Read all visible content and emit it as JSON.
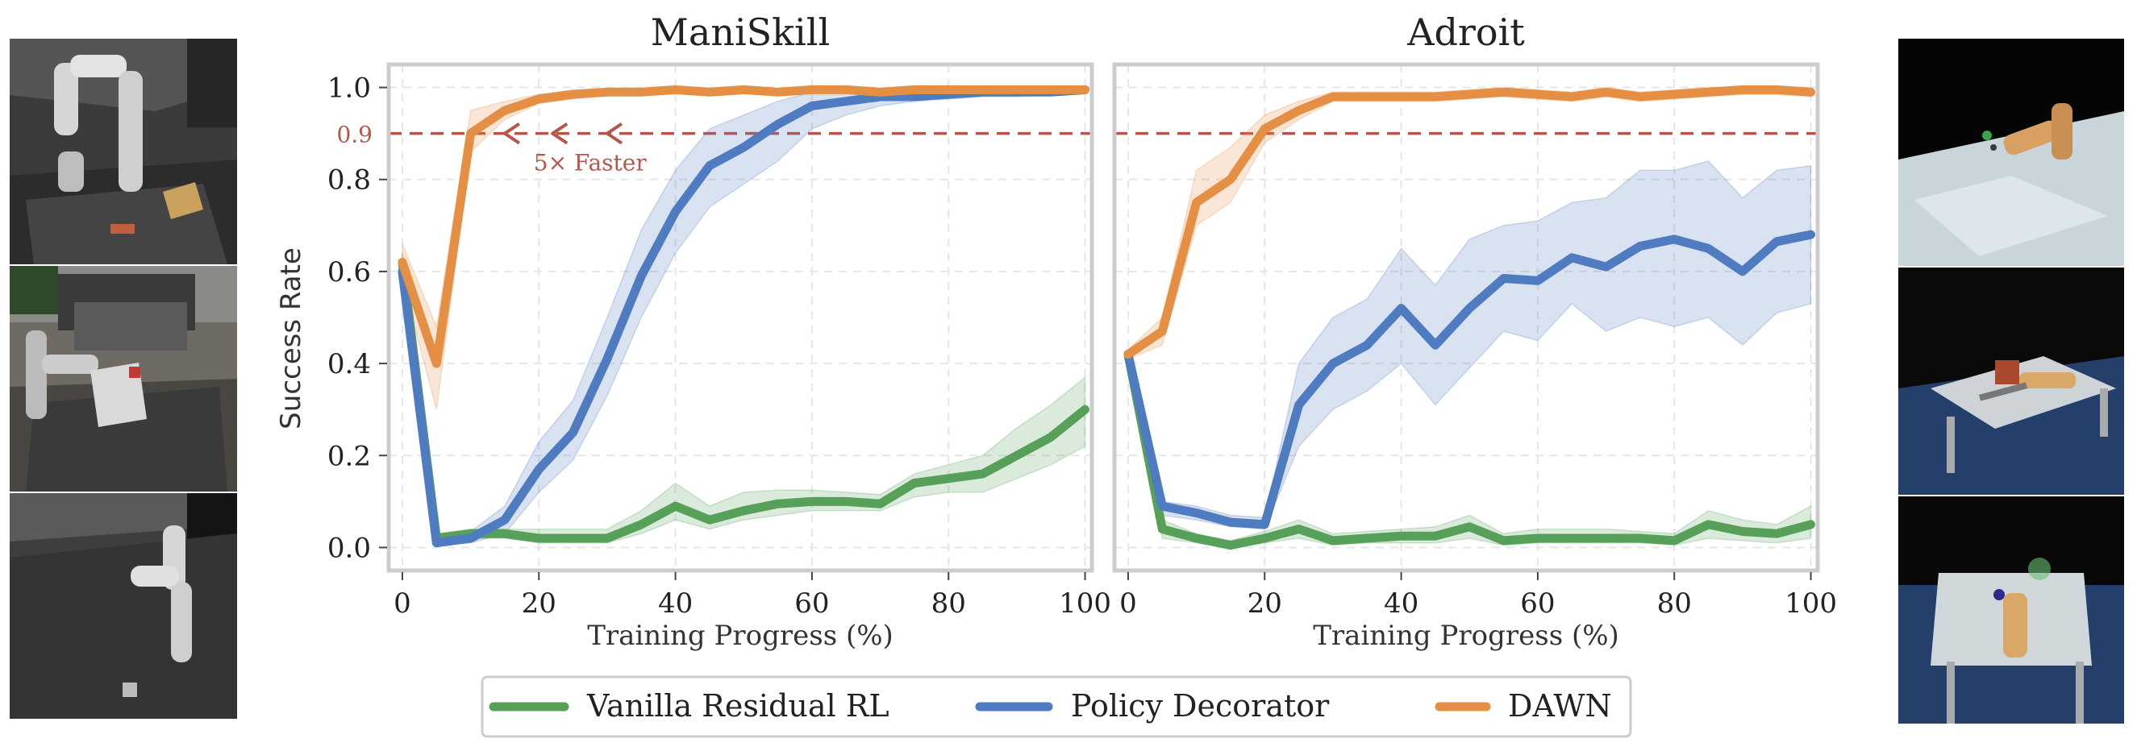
{
  "figure": {
    "y_axis_label": "Success Rate",
    "x_axis_label": "Training Progress (%)"
  },
  "annotation": {
    "threshold_label": "0.9",
    "speedup_label": "5× Faster"
  },
  "colors": {
    "vanilla": "#56a05a",
    "decorator": "#4f7cc1",
    "dawn": "#e58f45",
    "threshold": "#b5564b",
    "frame": "#cccccc",
    "grid": "#e6e6e6"
  },
  "legend": {
    "items": [
      {
        "label": "Vanilla Residual RL",
        "color": "#56a05a"
      },
      {
        "label": "Policy Decorator",
        "color": "#4f7cc1"
      },
      {
        "label": "DAWN",
        "color": "#e58f45"
      }
    ]
  },
  "thumbnails": {
    "left": [
      "robot-arm-cube-scene",
      "robot-arm-bedroom-chair-scene",
      "robot-arm-floor-scene"
    ],
    "right": [
      "dexterous-hand-marble-table-scene",
      "dexterous-hand-hammer-scene",
      "dexterous-hand-ball-scene"
    ]
  },
  "chart_data": [
    {
      "type": "line",
      "title": "ManiSkill",
      "xlabel": "Training Progress (%)",
      "ylabel": "Success Rate",
      "xlim": [
        -2,
        101
      ],
      "ylim": [
        -0.05,
        1.05
      ],
      "xticks": [
        "0",
        "20",
        "40",
        "60",
        "80",
        "100"
      ],
      "yticks": [
        "0.0",
        "0.2",
        "0.4",
        "0.6",
        "0.8",
        "1.0"
      ],
      "threshold": 0.9,
      "x": [
        0,
        5,
        10,
        15,
        20,
        25,
        30,
        35,
        40,
        45,
        50,
        55,
        60,
        65,
        70,
        75,
        80,
        85,
        90,
        95,
        100
      ],
      "series": [
        {
          "name": "Vanilla Residual RL",
          "key": "vanilla",
          "values": [
            0.62,
            0.02,
            0.03,
            0.03,
            0.02,
            0.02,
            0.02,
            0.05,
            0.09,
            0.06,
            0.08,
            0.095,
            0.1,
            0.1,
            0.095,
            0.14,
            0.15,
            0.16,
            0.2,
            0.24,
            0.3
          ],
          "lower": [
            0.6,
            0.01,
            0.02,
            0.02,
            0.01,
            0.01,
            0.01,
            0.03,
            0.06,
            0.04,
            0.06,
            0.07,
            0.08,
            0.08,
            0.08,
            0.11,
            0.12,
            0.12,
            0.15,
            0.18,
            0.22
          ],
          "upper": [
            0.64,
            0.03,
            0.04,
            0.04,
            0.04,
            0.04,
            0.04,
            0.08,
            0.14,
            0.09,
            0.12,
            0.125,
            0.125,
            0.12,
            0.115,
            0.16,
            0.18,
            0.2,
            0.26,
            0.31,
            0.37
          ]
        },
        {
          "name": "Policy Decorator",
          "key": "decorator",
          "values": [
            0.6,
            0.01,
            0.02,
            0.06,
            0.17,
            0.25,
            0.41,
            0.59,
            0.73,
            0.83,
            0.87,
            0.92,
            0.96,
            0.97,
            0.98,
            0.98,
            0.985,
            0.99,
            0.99,
            0.99,
            0.995
          ],
          "lower": [
            0.58,
            0.005,
            0.01,
            0.03,
            0.12,
            0.19,
            0.33,
            0.5,
            0.64,
            0.74,
            0.79,
            0.84,
            0.91,
            0.94,
            0.96,
            0.97,
            0.975,
            0.98,
            0.98,
            0.985,
            0.99
          ],
          "upper": [
            0.62,
            0.015,
            0.035,
            0.09,
            0.23,
            0.32,
            0.5,
            0.69,
            0.82,
            0.91,
            0.94,
            0.97,
            0.99,
            0.99,
            0.99,
            0.99,
            0.99,
            0.995,
            0.995,
            0.995,
            1.0
          ]
        },
        {
          "name": "DAWN",
          "key": "dawn",
          "values": [
            0.62,
            0.4,
            0.9,
            0.95,
            0.975,
            0.985,
            0.99,
            0.99,
            0.995,
            0.99,
            0.995,
            0.99,
            0.995,
            0.995,
            0.99,
            0.995,
            0.995,
            0.995,
            0.995,
            0.995,
            0.995
          ],
          "lower": [
            0.58,
            0.3,
            0.86,
            0.93,
            0.965,
            0.975,
            0.985,
            0.985,
            0.99,
            0.985,
            0.99,
            0.985,
            0.99,
            0.99,
            0.985,
            0.99,
            0.99,
            0.99,
            0.99,
            0.99,
            0.99
          ],
          "upper": [
            0.66,
            0.48,
            0.95,
            0.97,
            0.985,
            0.995,
            0.995,
            0.995,
            1.0,
            0.995,
            1.0,
            0.995,
            1.0,
            1.0,
            0.995,
            1.0,
            1.0,
            1.0,
            1.0,
            1.0,
            1.0
          ]
        }
      ]
    },
    {
      "type": "line",
      "title": "Adroit",
      "xlabel": "Training Progress (%)",
      "ylabel": "",
      "xlim": [
        -2,
        101
      ],
      "ylim": [
        -0.05,
        1.05
      ],
      "xticks": [
        "0",
        "20",
        "40",
        "60",
        "80",
        "100"
      ],
      "yticks": [],
      "threshold": 0.9,
      "x": [
        0,
        5,
        10,
        15,
        20,
        25,
        30,
        35,
        40,
        45,
        50,
        55,
        60,
        65,
        70,
        75,
        80,
        85,
        90,
        95,
        100
      ],
      "series": [
        {
          "name": "Vanilla Residual RL",
          "key": "vanilla",
          "values": [
            0.42,
            0.04,
            0.02,
            0.005,
            0.02,
            0.04,
            0.015,
            0.02,
            0.025,
            0.025,
            0.045,
            0.015,
            0.02,
            0.02,
            0.02,
            0.02,
            0.015,
            0.05,
            0.035,
            0.03,
            0.05
          ],
          "lower": [
            0.41,
            0.02,
            0.01,
            0.0,
            0.01,
            0.02,
            0.005,
            0.01,
            0.01,
            0.01,
            0.02,
            0.005,
            0.01,
            0.01,
            0.01,
            0.01,
            0.005,
            0.02,
            0.015,
            0.01,
            0.02
          ],
          "upper": [
            0.43,
            0.06,
            0.03,
            0.015,
            0.035,
            0.06,
            0.03,
            0.035,
            0.04,
            0.045,
            0.07,
            0.03,
            0.04,
            0.04,
            0.04,
            0.035,
            0.03,
            0.08,
            0.06,
            0.05,
            0.09
          ]
        },
        {
          "name": "Policy Decorator",
          "key": "decorator",
          "values": [
            0.42,
            0.09,
            0.075,
            0.055,
            0.05,
            0.31,
            0.4,
            0.44,
            0.52,
            0.44,
            0.52,
            0.585,
            0.58,
            0.63,
            0.61,
            0.655,
            0.67,
            0.65,
            0.6,
            0.665,
            0.68
          ],
          "lower": [
            0.41,
            0.07,
            0.06,
            0.045,
            0.04,
            0.22,
            0.3,
            0.34,
            0.4,
            0.31,
            0.39,
            0.47,
            0.45,
            0.53,
            0.47,
            0.5,
            0.48,
            0.5,
            0.44,
            0.51,
            0.53
          ],
          "upper": [
            0.43,
            0.1,
            0.09,
            0.07,
            0.065,
            0.4,
            0.5,
            0.54,
            0.65,
            0.57,
            0.67,
            0.7,
            0.71,
            0.75,
            0.76,
            0.82,
            0.82,
            0.84,
            0.76,
            0.82,
            0.83
          ]
        },
        {
          "name": "DAWN",
          "key": "dawn",
          "values": [
            0.42,
            0.47,
            0.75,
            0.8,
            0.91,
            0.95,
            0.98,
            0.98,
            0.98,
            0.98,
            0.985,
            0.99,
            0.985,
            0.98,
            0.99,
            0.98,
            0.985,
            0.99,
            0.995,
            0.995,
            0.99
          ],
          "lower": [
            0.41,
            0.44,
            0.7,
            0.75,
            0.88,
            0.93,
            0.97,
            0.97,
            0.97,
            0.97,
            0.975,
            0.98,
            0.975,
            0.97,
            0.98,
            0.97,
            0.975,
            0.98,
            0.985,
            0.985,
            0.98
          ],
          "upper": [
            0.43,
            0.5,
            0.82,
            0.87,
            0.94,
            0.97,
            0.99,
            0.99,
            0.99,
            0.99,
            0.995,
            1.0,
            0.995,
            0.99,
            1.0,
            0.99,
            0.995,
            1.0,
            1.0,
            1.0,
            1.0
          ]
        }
      ]
    }
  ]
}
